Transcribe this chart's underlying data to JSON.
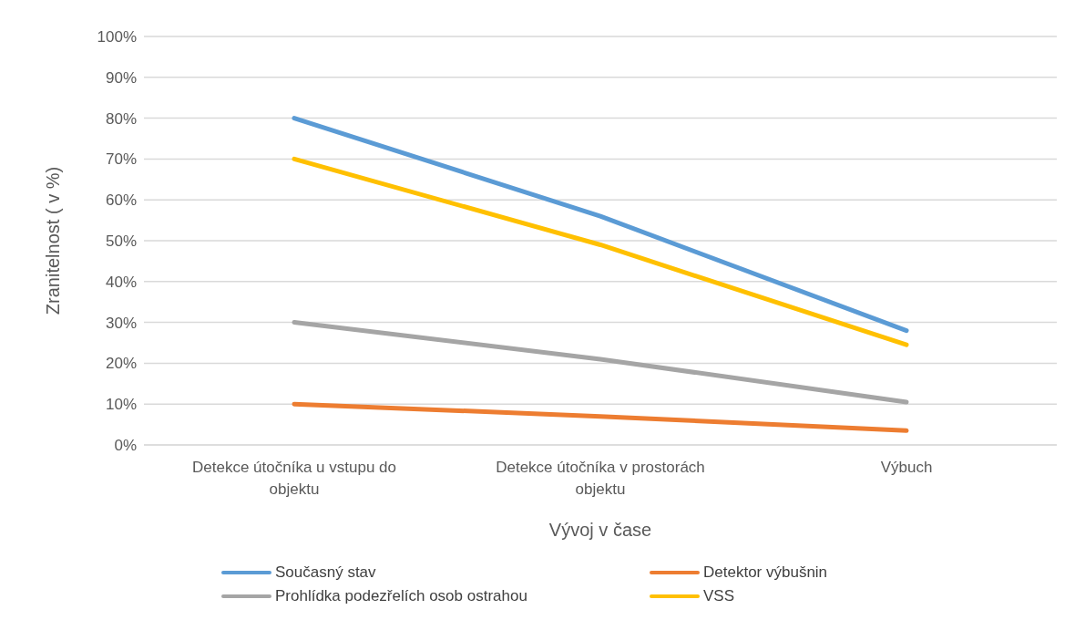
{
  "chart_data": {
    "type": "line",
    "xlabel": "Vývoj v čase",
    "ylabel": "Zranitelnost ( v %)",
    "categories": [
      "Detekce útočníka u vstupu do objektu",
      "Detekce útočníka v prostorách objektu",
      "Výbuch"
    ],
    "series": [
      {
        "name": "Současný stav",
        "color": "#5b9bd5",
        "values": [
          80,
          56,
          28
        ]
      },
      {
        "name": "Detektor výbušnin",
        "color": "#ed7d31",
        "values": [
          10,
          7,
          3.5
        ]
      },
      {
        "name": "Prohlídka podezřelích osob ostrahou",
        "color": "#a5a5a5",
        "values": [
          30,
          21,
          10.5
        ]
      },
      {
        "name": "VSS",
        "color": "#ffc000",
        "values": [
          70,
          49,
          24.5
        ]
      }
    ],
    "ylim": [
      0,
      100
    ],
    "yticks": [
      {
        "value": 0,
        "label": "0%"
      },
      {
        "value": 10,
        "label": "10%"
      },
      {
        "value": 20,
        "label": "20%"
      },
      {
        "value": 30,
        "label": "30%"
      },
      {
        "value": 40,
        "label": "40%"
      },
      {
        "value": 50,
        "label": "50%"
      },
      {
        "value": 60,
        "label": "60%"
      },
      {
        "value": 70,
        "label": "70%"
      },
      {
        "value": 80,
        "label": "80%"
      },
      {
        "value": 90,
        "label": "90%"
      },
      {
        "value": 100,
        "label": "100%"
      }
    ],
    "grid": "y",
    "legend": "bottom",
    "marker": "none",
    "line_style": "solid"
  }
}
